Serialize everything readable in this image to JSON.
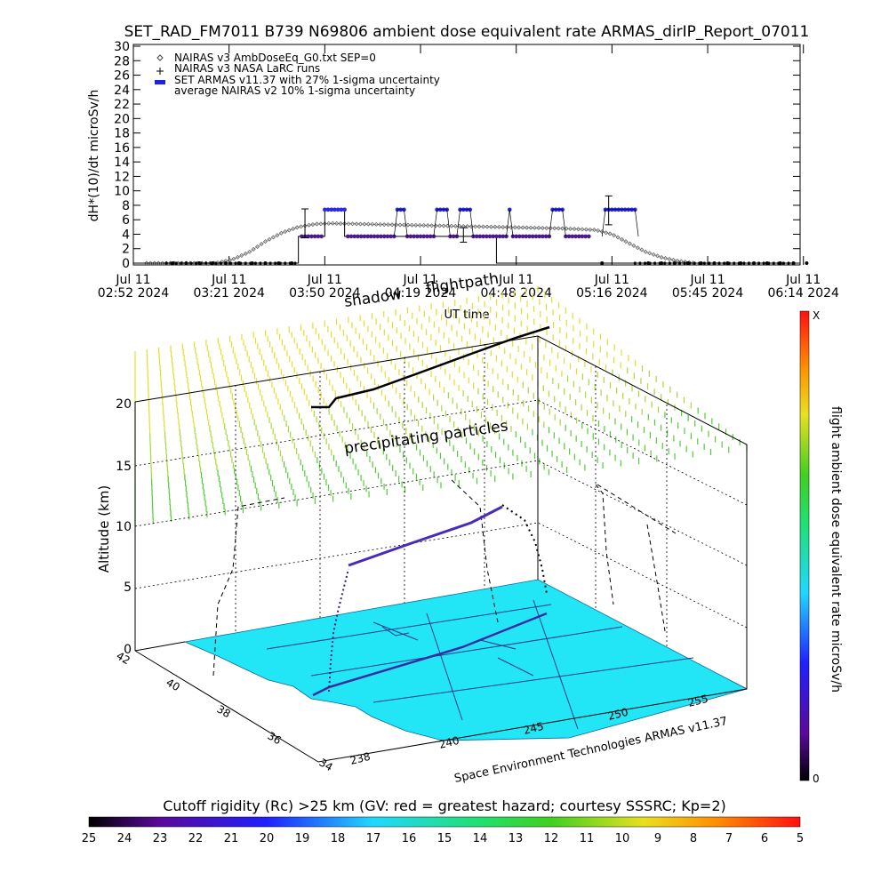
{
  "title": "SET_RAD_FM7011  B739 N69806 ambient dose equivalent rate ARMAS_dirIP_Report_07011",
  "chart_data": [
    {
      "type": "line",
      "ylabel": "dH*(10)/dt microSv/h",
      "xlabel": "UT time",
      "ylim": [
        0,
        30
      ],
      "yticks": [
        "0",
        "2",
        "4",
        "6",
        "8",
        "10",
        "12",
        "14",
        "16",
        "18",
        "20",
        "22",
        "24",
        "26",
        "28",
        "30"
      ],
      "xticks": [
        {
          "top": "Jul 11",
          "bottom": "02:52 2024"
        },
        {
          "top": "Jul 11",
          "bottom": "03:21 2024"
        },
        {
          "top": "Jul 11",
          "bottom": "03:50 2024"
        },
        {
          "top": "Jul 11",
          "bottom": "04:19 2024"
        },
        {
          "top": "Jul 11",
          "bottom": "04:48 2024"
        },
        {
          "top": "Jul 11",
          "bottom": "05:16 2024"
        },
        {
          "top": "Jul 11",
          "bottom": "05:45 2024"
        },
        {
          "top": "Jul 11",
          "bottom": "06:14 2024"
        }
      ],
      "legend_position": "top-left",
      "legend": [
        "NAIRAS v3 AmbDoseEq_G0.txt SEP=0",
        "NAIRAS v3 NASA LaRC runs",
        "SET ARMAS v11.37 with 27% 1-sigma uncertainty",
        "average NAIRAS v2 10% 1-sigma uncertainty"
      ],
      "colors": {
        "armas": "#2020e0",
        "armas_low": "#4a1a8a",
        "nairas": "#555555"
      },
      "nairas_x_minutes": [
        0,
        15,
        25,
        30,
        35,
        40,
        45,
        50,
        55,
        60,
        70,
        80,
        90,
        100,
        110,
        120,
        130,
        140,
        145,
        150,
        155,
        160,
        165,
        170,
        180,
        190,
        200
      ],
      "nairas_y": [
        0,
        0,
        0,
        0.5,
        1.5,
        3,
        4.2,
        5.0,
        5.4,
        5.5,
        5.4,
        5.3,
        5.2,
        5.1,
        5.0,
        4.9,
        4.8,
        4.6,
        4.0,
        2.8,
        1.6,
        0.8,
        0.3,
        0,
        0,
        0,
        0
      ],
      "armas_x_minutes": [
        0,
        50,
        50,
        58,
        58,
        64,
        64,
        110,
        110,
        200
      ],
      "armas_y": [
        0,
        0,
        3.7,
        3.7,
        7.4,
        7.4,
        3.7,
        3.7,
        0,
        0
      ],
      "armas_high_minutes": [
        58,
        59,
        60,
        61,
        62,
        63,
        64,
        80,
        81,
        82,
        92,
        93,
        94,
        95,
        99,
        100,
        101,
        102,
        114,
        127,
        128,
        129,
        130,
        143,
        144,
        145,
        146,
        147,
        148,
        149,
        150,
        151,
        152
      ],
      "armas_low_minutes": [
        51,
        52,
        53,
        54,
        55,
        56,
        57,
        65,
        66,
        67,
        68,
        69,
        70,
        71,
        72,
        73,
        74,
        75,
        76,
        77,
        78,
        79,
        83,
        84,
        85,
        86,
        87,
        88,
        89,
        90,
        91,
        96,
        97,
        98,
        103,
        104,
        105,
        106,
        107,
        108,
        109,
        110,
        111,
        112,
        113,
        115,
        116,
        117,
        118,
        119,
        120,
        121,
        122,
        123,
        124,
        125,
        126,
        131,
        132,
        133,
        134,
        135,
        136,
        137,
        138
      ],
      "zero_minutes": [
        12,
        16,
        20,
        24,
        28,
        32,
        36,
        40,
        44,
        48,
        142,
        156,
        160,
        164,
        168,
        172,
        176,
        180,
        184,
        188,
        192,
        196,
        200,
        204
      ],
      "error_bars": [
        {
          "x_minutes": 52,
          "y": 5.5,
          "err": 2.0
        },
        {
          "x_minutes": 100,
          "y": 3.9,
          "err": 1.0
        },
        {
          "x_minutes": 144,
          "y": 7.3,
          "err": 2.0
        }
      ]
    },
    {
      "type": "3d-trajectory",
      "title_overlays": [
        "shadow",
        "flightpath",
        "precipitating particles"
      ],
      "zlabel": "Altitude (km)",
      "zticks": [
        "0",
        "5",
        "10",
        "15",
        "20"
      ],
      "lat_ticks": [
        "34",
        "36",
        "38",
        "40",
        "42"
      ],
      "lon_ticks": [
        "238",
        "240",
        "245",
        "250",
        "255"
      ],
      "footer": "Space Environment Technologies ARMAS v11.37",
      "colorbar_label": "flight ambient dose equivalent rate microSv/h",
      "colorbar_top": "X",
      "colorbar_bottom": "0",
      "colors": {
        "surface": "#22e5f5",
        "flightpath": "#3a2ca0",
        "precip_top": "#e8e020",
        "precip_bottom": "#40cc30"
      }
    },
    {
      "type": "colorbar",
      "title": "Cutoff rigidity (Rc) >25 km (GV: red = greatest hazard; courtesy SSSRC; Kp=2)",
      "labels": [
        "25",
        "24",
        "23",
        "22",
        "21",
        "20",
        "19",
        "18",
        "17",
        "16",
        "15",
        "14",
        "13",
        "12",
        "11",
        "10",
        "9",
        "8",
        "7",
        "6",
        "5"
      ]
    }
  ]
}
